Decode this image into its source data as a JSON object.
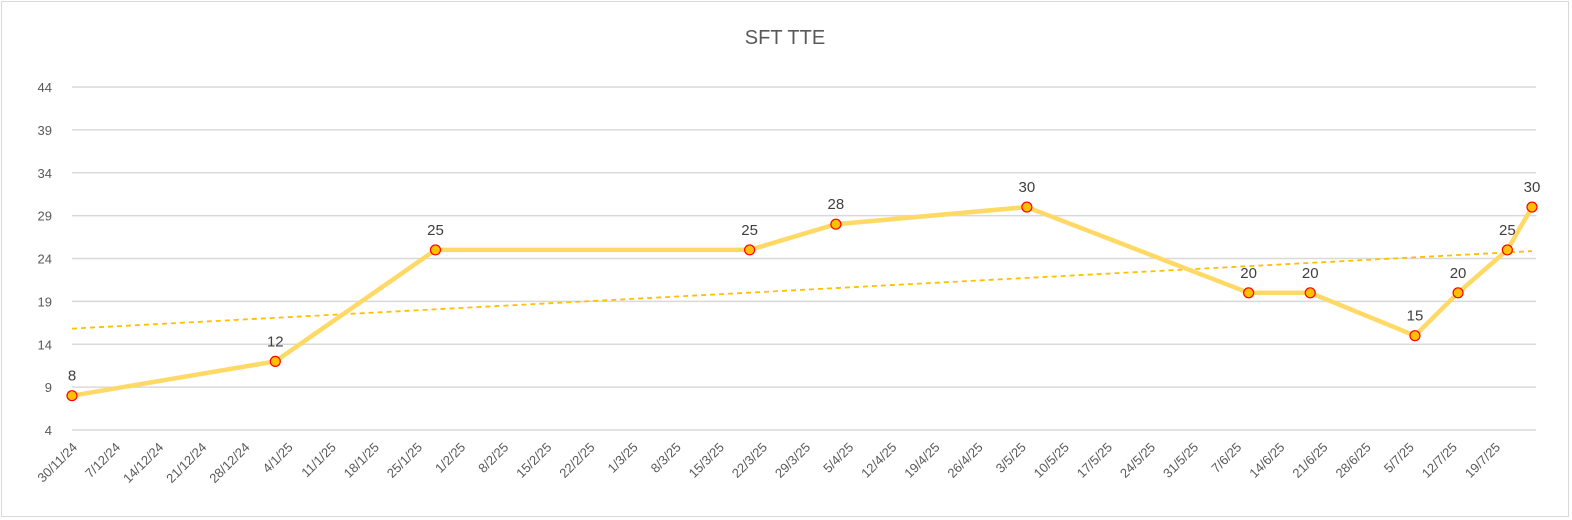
{
  "chart_data": {
    "type": "line",
    "title": "SFT TTE",
    "xlabel": "",
    "ylabel": "",
    "x_axis": "date",
    "xlim": [
      "30/11/24",
      "25/7/25"
    ],
    "ylim": [
      4,
      44
    ],
    "y_ticks": [
      4,
      9,
      14,
      19,
      24,
      29,
      34,
      39,
      44
    ],
    "x_tick_labels": [
      "30/11/24",
      "7/12/24",
      "14/12/24",
      "21/12/24",
      "28/12/24",
      "4/1/25",
      "11/1/25",
      "18/1/25",
      "25/1/25",
      "1/2/25",
      "8/2/25",
      "15/2/25",
      "22/2/25",
      "1/3/25",
      "8/3/25",
      "15/3/25",
      "22/3/25",
      "29/3/25",
      "5/4/25",
      "12/4/25",
      "19/4/25",
      "26/4/25",
      "3/5/25",
      "10/5/25",
      "17/5/25",
      "24/5/25",
      "31/5/25",
      "7/6/25",
      "14/6/25",
      "21/6/25",
      "28/6/25",
      "5/7/25",
      "12/7/25",
      "19/7/25"
    ],
    "grid": true,
    "legend": "none",
    "series": [
      {
        "x": [
          "30/11/24",
          "2/1/25",
          "28/1/25",
          "20/3/25",
          "3/4/25",
          "4/5/25",
          "9/6/25",
          "19/6/25",
          "6/7/25",
          "13/7/25",
          "21/7/25",
          "25/7/25"
        ],
        "values": [
          8,
          12,
          25,
          25,
          28,
          30,
          20,
          20,
          15,
          20,
          25,
          30
        ],
        "data_labels": true
      }
    ],
    "trendline": {
      "type": "linear",
      "style": "dashed"
    },
    "colors": {
      "line": "#FFD966",
      "marker_fill": "#FFC000",
      "marker_border": "#FF0000",
      "trendline": "#FFC000",
      "grid": "#D9D9D9"
    }
  }
}
